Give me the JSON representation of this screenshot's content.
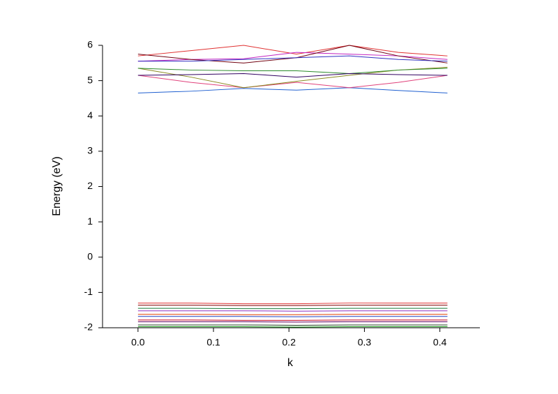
{
  "chart_data": {
    "type": "line",
    "xlabel": "k",
    "ylabel": "Energy (eV)",
    "x": [
      0,
      0.07,
      0.14,
      0.21,
      0.28,
      0.345,
      0.41
    ],
    "xlim": [
      -0.047,
      0.453
    ],
    "xticks": [
      {
        "value": 0,
        "label": "0.0"
      },
      0.1,
      0.2,
      0.3,
      0.4
    ],
    "ylim": [
      -2,
      6
    ],
    "yticks": [
      -2,
      -1,
      0,
      1,
      2,
      3,
      4,
      5,
      6
    ],
    "series": [
      {
        "color": "#1f5fd0",
        "values": [
          4.65,
          4.7,
          4.78,
          4.73,
          4.8,
          4.72,
          4.65
        ]
      },
      {
        "color": "#e0407a",
        "values": [
          5.15,
          4.95,
          4.8,
          4.95,
          4.8,
          4.95,
          5.15
        ]
      },
      {
        "color": "#8a8a20",
        "values": [
          5.35,
          5.1,
          4.8,
          4.98,
          5.15,
          5.3,
          5.38
        ]
      },
      {
        "color": "#2a8a2a",
        "values": [
          5.35,
          5.3,
          5.28,
          5.28,
          5.2,
          5.3,
          5.35
        ]
      },
      {
        "color": "#300060",
        "values": [
          5.15,
          5.17,
          5.2,
          5.1,
          5.2,
          5.17,
          5.15
        ]
      },
      {
        "color": "#e03030",
        "values": [
          5.7,
          5.85,
          6.0,
          5.75,
          6.0,
          5.8,
          5.7
        ]
      },
      {
        "color": "#c020c0",
        "values": [
          5.55,
          5.6,
          5.62,
          5.8,
          5.75,
          5.7,
          5.6
        ]
      },
      {
        "color": "#700010",
        "values": [
          5.75,
          5.6,
          5.5,
          5.65,
          6.0,
          5.7,
          5.5
        ]
      },
      {
        "color": "#3030c0",
        "values": [
          5.55,
          5.55,
          5.6,
          5.65,
          5.7,
          5.6,
          5.55
        ]
      },
      {
        "color": "#e03030",
        "values": [
          -1.3,
          -1.3,
          -1.32,
          -1.32,
          -1.3,
          -1.3,
          -1.3
        ]
      },
      {
        "color": "#800000",
        "values": [
          -1.36,
          -1.36,
          -1.37,
          -1.37,
          -1.36,
          -1.36,
          -1.36
        ]
      },
      {
        "color": "#1a7a3a",
        "values": [
          -1.45,
          -1.45,
          -1.46,
          -1.46,
          -1.45,
          -1.45,
          -1.45
        ]
      },
      {
        "color": "#9030c0",
        "values": [
          -1.52,
          -1.52,
          -1.52,
          -1.53,
          -1.52,
          -1.52,
          -1.52
        ]
      },
      {
        "color": "#e04000",
        "values": [
          -1.62,
          -1.62,
          -1.63,
          -1.63,
          -1.62,
          -1.62,
          -1.62
        ]
      },
      {
        "color": "#2040c0",
        "values": [
          -1.68,
          -1.68,
          -1.68,
          -1.69,
          -1.68,
          -1.68,
          -1.68
        ]
      },
      {
        "color": "#c00020",
        "values": [
          -1.78,
          -1.78,
          -1.79,
          -1.79,
          -1.78,
          -1.78,
          -1.78
        ]
      },
      {
        "color": "#600060",
        "values": [
          -1.83,
          -1.83,
          -1.83,
          -1.84,
          -1.83,
          -1.83,
          -1.83
        ]
      },
      {
        "color": "#204020",
        "values": [
          -1.92,
          -1.92,
          -1.92,
          -1.93,
          -1.92,
          -1.92,
          -1.92
        ]
      },
      {
        "color": "#20a020",
        "values": [
          -1.97,
          -1.97,
          -1.97,
          -1.98,
          -1.97,
          -1.97,
          -1.97
        ]
      }
    ]
  }
}
